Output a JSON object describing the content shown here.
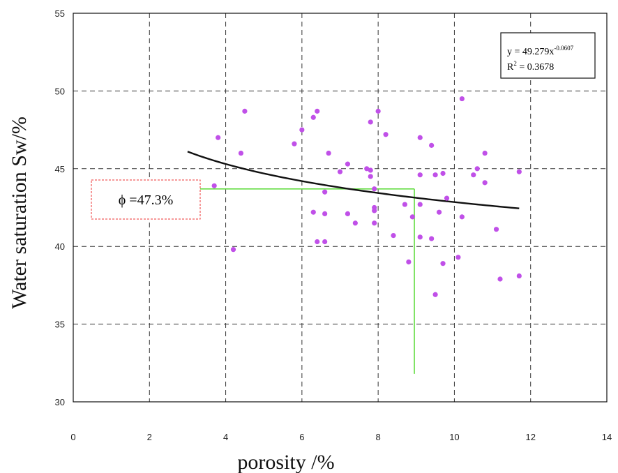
{
  "chart_data": {
    "type": "scatter",
    "xlabel": "porosity /%",
    "ylabel": "Water saturation  Sw/%",
    "xlim": [
      0,
      14
    ],
    "ylim": [
      30,
      55
    ],
    "xticks": [
      0,
      2,
      4,
      6,
      8,
      10,
      12,
      14
    ],
    "yticks": [
      30,
      35,
      40,
      45,
      50,
      55
    ],
    "grid": true,
    "point_color": "#c050e8",
    "fit_color": "#111111",
    "guide_color": "#66dd44",
    "annotation_border_color": "#ee3333",
    "points": [
      [
        3.7,
        43.9
      ],
      [
        3.8,
        47.0
      ],
      [
        4.2,
        39.8
      ],
      [
        4.4,
        46.0
      ],
      [
        4.5,
        48.7
      ],
      [
        5.8,
        46.6
      ],
      [
        6.0,
        47.5
      ],
      [
        6.3,
        48.3
      ],
      [
        6.3,
        42.2
      ],
      [
        6.4,
        48.7
      ],
      [
        6.4,
        40.3
      ],
      [
        6.6,
        43.5
      ],
      [
        6.6,
        42.1
      ],
      [
        6.6,
        40.3
      ],
      [
        6.7,
        46.0
      ],
      [
        7.0,
        44.8
      ],
      [
        7.2,
        45.3
      ],
      [
        7.2,
        42.1
      ],
      [
        7.4,
        41.5
      ],
      [
        7.7,
        45.0
      ],
      [
        7.8,
        48.0
      ],
      [
        7.8,
        44.9
      ],
      [
        7.8,
        44.5
      ],
      [
        7.9,
        43.7
      ],
      [
        7.9,
        42.5
      ],
      [
        7.9,
        42.3
      ],
      [
        7.9,
        41.5
      ],
      [
        8.0,
        48.7
      ],
      [
        8.2,
        47.2
      ],
      [
        8.4,
        40.7
      ],
      [
        8.7,
        42.7
      ],
      [
        8.8,
        39.0
      ],
      [
        8.9,
        41.9
      ],
      [
        9.1,
        47.0
      ],
      [
        9.1,
        44.6
      ],
      [
        9.1,
        42.7
      ],
      [
        9.1,
        40.6
      ],
      [
        9.4,
        46.5
      ],
      [
        9.4,
        40.5
      ],
      [
        9.5,
        44.6
      ],
      [
        9.5,
        36.9
      ],
      [
        9.6,
        42.2
      ],
      [
        9.7,
        44.7
      ],
      [
        9.7,
        38.9
      ],
      [
        9.8,
        43.1
      ],
      [
        10.1,
        39.3
      ],
      [
        10.2,
        49.5
      ],
      [
        10.2,
        41.9
      ],
      [
        10.5,
        44.6
      ],
      [
        10.6,
        45.0
      ],
      [
        10.8,
        46.0
      ],
      [
        10.8,
        44.1
      ],
      [
        11.1,
        41.1
      ],
      [
        11.2,
        37.9
      ],
      [
        11.7,
        44.8
      ],
      [
        11.7,
        38.1
      ]
    ],
    "fit": {
      "a": 49.279,
      "b": -0.0607,
      "x_range": [
        3.0,
        11.7
      ],
      "equation_text": "y = 49.279x",
      "equation_exponent": "-0.0607",
      "r2_prefix": "R",
      "r2_sup": "2",
      "r2_value": " = 0.3678"
    },
    "guide": {
      "x": 8.95,
      "y": 43.7,
      "y_bottom": 31.8,
      "x_start": 3.3
    },
    "annotation_text": "ϕ =47.3%"
  }
}
